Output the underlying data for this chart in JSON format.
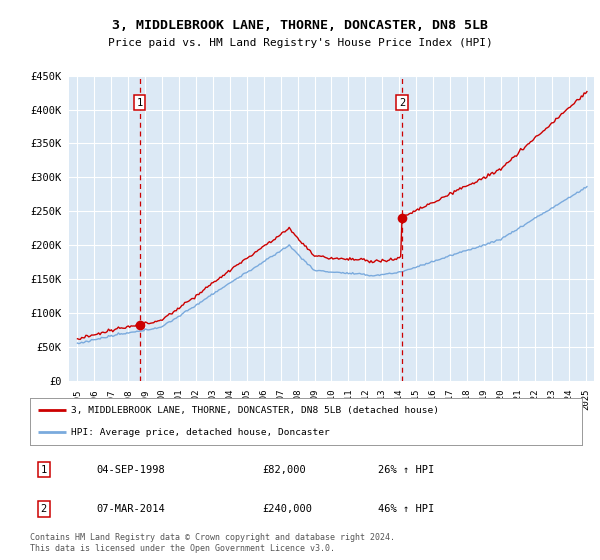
{
  "title": "3, MIDDLEBROOK LANE, THORNE, DONCASTER, DN8 5LB",
  "subtitle": "Price paid vs. HM Land Registry's House Price Index (HPI)",
  "legend_line1": "3, MIDDLEBROOK LANE, THORNE, DONCASTER, DN8 5LB (detached house)",
  "legend_line2": "HPI: Average price, detached house, Doncaster",
  "footnote": "Contains HM Land Registry data © Crown copyright and database right 2024.\nThis data is licensed under the Open Government Licence v3.0.",
  "sale1_date": "04-SEP-1998",
  "sale1_price": "£82,000",
  "sale1_hpi": "26% ↑ HPI",
  "sale2_date": "07-MAR-2014",
  "sale2_price": "£240,000",
  "sale2_hpi": "46% ↑ HPI",
  "marker1_year": 1998.67,
  "marker1_price": 82000,
  "marker2_year": 2014.17,
  "marker2_price": 240000,
  "ylim": [
    0,
    450000
  ],
  "xlim": [
    1994.5,
    2025.5
  ],
  "plot_bg": "#dce9f5",
  "red_color": "#cc0000",
  "blue_color": "#7aaadd",
  "grid_color": "#ffffff",
  "yticks": [
    0,
    50000,
    100000,
    150000,
    200000,
    250000,
    300000,
    350000,
    400000,
    450000
  ],
  "ytick_labels": [
    "£0",
    "£50K",
    "£100K",
    "£150K",
    "£200K",
    "£250K",
    "£300K",
    "£350K",
    "£400K",
    "£450K"
  ]
}
